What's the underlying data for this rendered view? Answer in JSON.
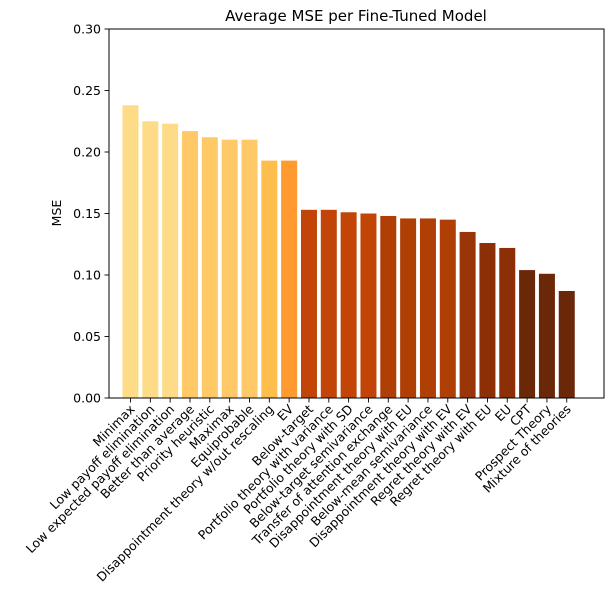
{
  "chart_data": {
    "type": "bar",
    "title": "Average MSE per Fine-Tuned Model",
    "xlabel": "",
    "ylabel": "MSE",
    "ylim": [
      0,
      0.3
    ],
    "yticks": [
      "0.00",
      "0.05",
      "0.10",
      "0.15",
      "0.20",
      "0.25",
      "0.30"
    ],
    "grid": false,
    "legend": "none",
    "categories": [
      "Minimax",
      "Low payoff elimination",
      "Low expected payoff elimination",
      "Better than average",
      "Priority heuristic",
      "Maximax",
      "Equiprobable",
      "Disappointment theory w/out rescaling",
      "EV",
      "Below-target",
      "Portfolio theory with variance",
      "Portfolio theory with SD",
      "Below-target semivariance",
      "Transfer of attention exchange",
      "Disappointment theory with EU",
      "Below-mean semivariance",
      "Disappointment theory with EV",
      "Regret theory with EV",
      "Regret theory with EU",
      "EU",
      "CPT",
      "Prospect Theory",
      "Mixture of theories"
    ],
    "values": [
      0.238,
      0.225,
      0.223,
      0.217,
      0.212,
      0.21,
      0.21,
      0.193,
      0.193,
      0.153,
      0.153,
      0.151,
      0.15,
      0.148,
      0.146,
      0.146,
      0.145,
      0.135,
      0.126,
      0.122,
      0.104,
      0.101,
      0.087
    ],
    "colors": [
      "#fedb87",
      "#fedb87",
      "#fedb87",
      "#fec966",
      "#fec966",
      "#fec966",
      "#fec966",
      "#fdbe4c",
      "#fe9a2f",
      "#c24407",
      "#c24407",
      "#c24407",
      "#c24407",
      "#b03f06",
      "#b03f06",
      "#b03f06",
      "#b03f06",
      "#9a3507",
      "#8c2f07",
      "#8c2f07",
      "#6b2809",
      "#6b2809",
      "#6b2809"
    ]
  }
}
